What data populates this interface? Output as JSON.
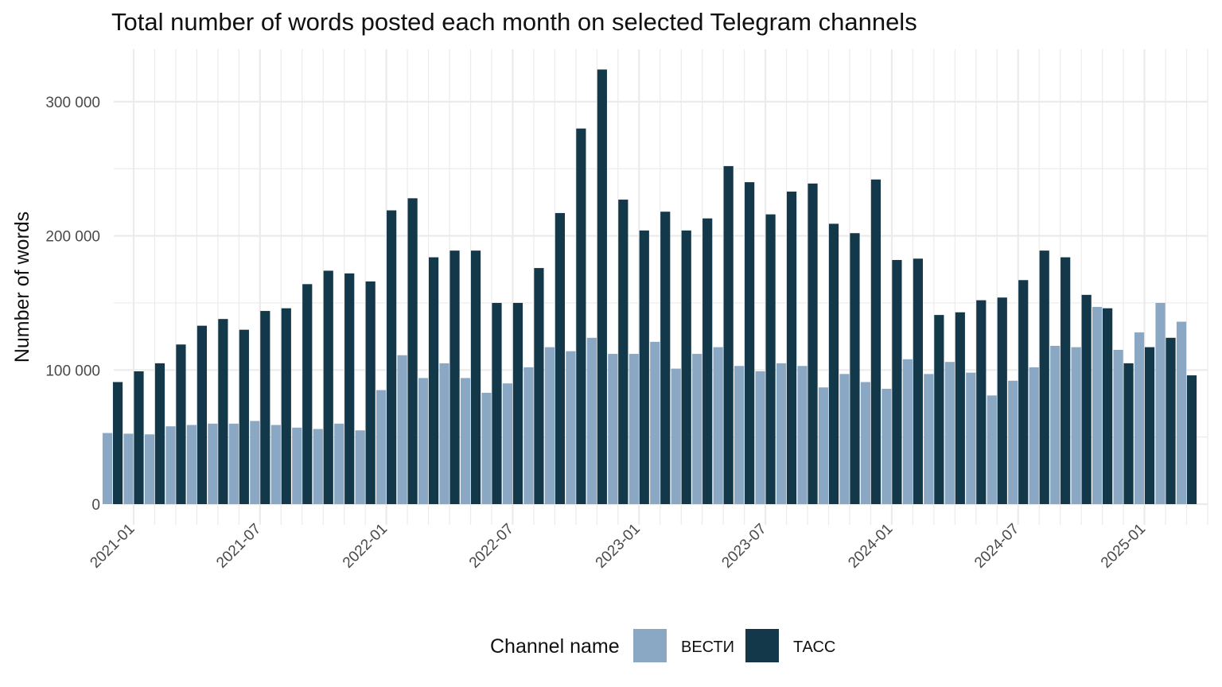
{
  "chart_data": {
    "type": "bar",
    "title": "Total number of words posted each month on selected Telegram channels",
    "xlabel": "",
    "ylabel": "Number of words",
    "x_tick_labels": [
      "2021-01",
      "2021-07",
      "2022-01",
      "2022-07",
      "2023-01",
      "2023-07",
      "2024-01",
      "2024-07",
      "2025-01"
    ],
    "y_tick_labels": [
      "0",
      "100 000",
      "200 000",
      "300 000"
    ],
    "y_ticks": [
      0,
      100000,
      200000,
      300000
    ],
    "ylim": [
      0,
      330000
    ],
    "grid": true,
    "legend": {
      "title": "Channel name",
      "position": "bottom"
    },
    "categories": [
      "2020-12",
      "2021-01",
      "2021-02",
      "2021-03",
      "2021-04",
      "2021-05",
      "2021-06",
      "2021-07",
      "2021-08",
      "2021-09",
      "2021-10",
      "2021-11",
      "2021-12",
      "2022-01",
      "2022-02",
      "2022-03",
      "2022-04",
      "2022-05",
      "2022-06",
      "2022-07",
      "2022-08",
      "2022-09",
      "2022-10",
      "2022-11",
      "2022-12",
      "2023-01",
      "2023-02",
      "2023-03",
      "2023-04",
      "2023-05",
      "2023-06",
      "2023-07",
      "2023-08",
      "2023-09",
      "2023-10",
      "2023-11",
      "2023-12",
      "2024-01",
      "2024-02",
      "2024-03",
      "2024-04",
      "2024-05",
      "2024-06",
      "2024-07",
      "2024-08",
      "2024-09",
      "2024-10",
      "2024-11",
      "2024-12",
      "2025-01",
      "2025-02",
      "2025-03"
    ],
    "series": [
      {
        "name": "ВЕСТИ",
        "color": "#8aa8c4",
        "values": [
          53000,
          52500,
          52000,
          58000,
          59000,
          60000,
          60000,
          62000,
          59000,
          57000,
          56000,
          60000,
          55000,
          85000,
          111000,
          94000,
          105000,
          94000,
          83000,
          90000,
          102000,
          117000,
          114000,
          124000,
          112000,
          112000,
          121000,
          101000,
          112000,
          117000,
          103000,
          99000,
          105000,
          103000,
          87000,
          97000,
          91000,
          86000,
          108000,
          97000,
          106000,
          98000,
          81000,
          92000,
          102000,
          118000,
          117000,
          147000,
          115000,
          128000,
          150000,
          136000
        ]
      },
      {
        "name": "ТАСС",
        "color": "#13384a",
        "values": [
          91000,
          99000,
          105000,
          119000,
          133000,
          138000,
          130000,
          144000,
          146000,
          164000,
          174000,
          172000,
          166000,
          219000,
          228000,
          184000,
          189000,
          189000,
          150000,
          150000,
          176000,
          217000,
          280000,
          324000,
          227000,
          204000,
          218000,
          204000,
          213000,
          252000,
          240000,
          216000,
          233000,
          239000,
          209000,
          202000,
          242000,
          182000,
          183000,
          141000,
          143000,
          152000,
          154000,
          167000,
          189000,
          184000,
          156000,
          146000,
          105000,
          117000,
          124000,
          96000
        ]
      }
    ]
  }
}
